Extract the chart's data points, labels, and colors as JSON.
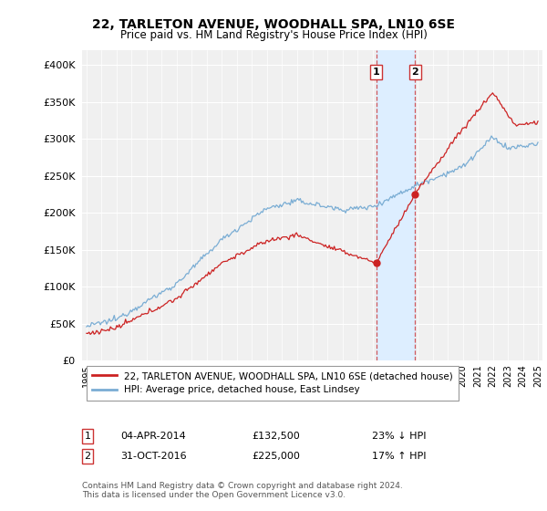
{
  "title": "22, TARLETON AVENUE, WOODHALL SPA, LN10 6SE",
  "subtitle": "Price paid vs. HM Land Registry's House Price Index (HPI)",
  "legend_line1": "22, TARLETON AVENUE, WOODHALL SPA, LN10 6SE (detached house)",
  "legend_line2": "HPI: Average price, detached house, East Lindsey",
  "transaction1_date": "04-APR-2014",
  "transaction1_price": "£132,500",
  "transaction1_pct": "23% ↓ HPI",
  "transaction2_date": "31-OCT-2016",
  "transaction2_price": "£225,000",
  "transaction2_pct": "17% ↑ HPI",
  "footer": "Contains HM Land Registry data © Crown copyright and database right 2024.\nThis data is licensed under the Open Government Licence v3.0.",
  "hpi_color": "#7aadd4",
  "price_color": "#cc2222",
  "highlight_color": "#ddeeff",
  "vline_color": "#cc3333",
  "ylim": [
    0,
    420000
  ],
  "yticks": [
    0,
    50000,
    100000,
    150000,
    200000,
    250000,
    300000,
    350000,
    400000
  ],
  "background_color": "#ffffff",
  "plot_bg_color": "#f0f0f0",
  "transaction1_x": 2014.25,
  "transaction1_y": 132500,
  "transaction2_x": 2016.83,
  "transaction2_y": 225000,
  "xmin": 1995,
  "xmax": 2025
}
